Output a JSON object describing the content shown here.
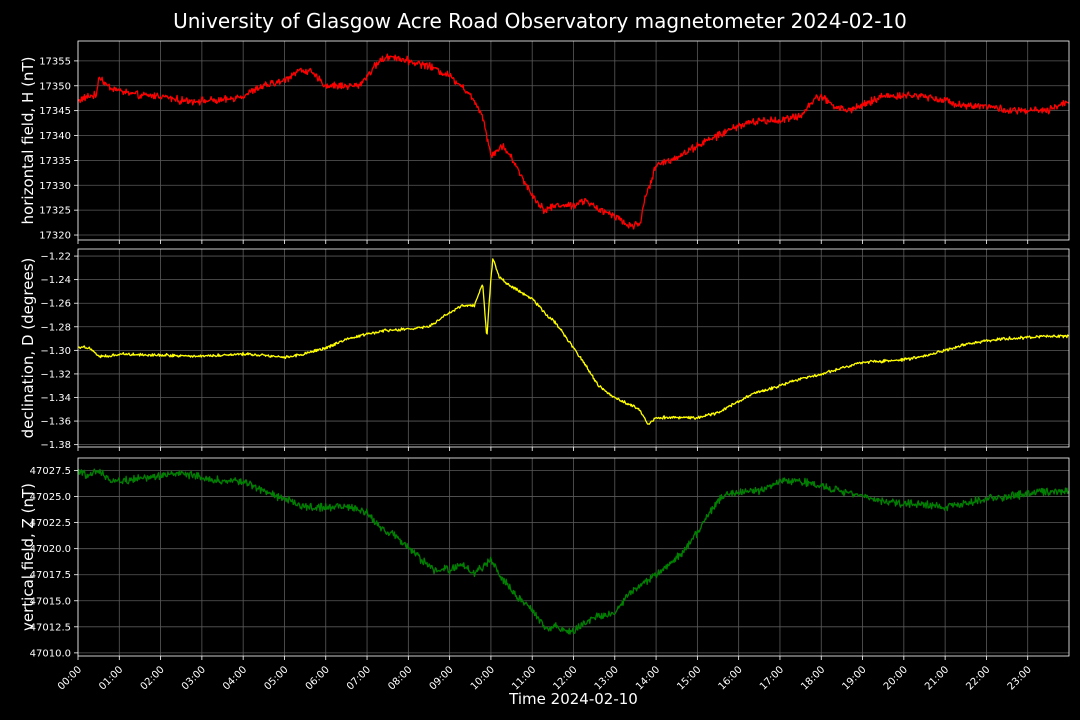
{
  "chart_data": {
    "type": "line",
    "title": "University of Glasgow Acre Road Observatory magnetometer 2024-02-10",
    "xlabel": "Time 2024-02-10",
    "x_tick_labels": [
      "00:00",
      "01:00",
      "02:00",
      "03:00",
      "04:00",
      "05:00",
      "06:00",
      "07:00",
      "08:00",
      "09:00",
      "10:00",
      "11:00",
      "12:00",
      "13:00",
      "14:00",
      "15:00",
      "16:00",
      "17:00",
      "18:00",
      "19:00",
      "20:00",
      "21:00",
      "22:00",
      "23:00"
    ],
    "xlim_hours": [
      0,
      24
    ],
    "grid": true,
    "background": "#000000",
    "panels": [
      {
        "id": "h",
        "ylabel": "horizontal field, H (nT)",
        "color": "#ff0000",
        "ylim": [
          17319,
          17359
        ],
        "yticks": [
          17320,
          17325,
          17330,
          17335,
          17340,
          17345,
          17350,
          17355
        ],
        "ytick_labels": [
          "17320",
          "17325",
          "17330",
          "17335",
          "17340",
          "17345",
          "17350",
          "17355"
        ],
        "noise": 0.9,
        "series": {
          "name": "H",
          "x": [
            0,
            0.3,
            0.45,
            0.5,
            0.7,
            1.0,
            1.5,
            2.0,
            2.5,
            3.0,
            3.5,
            4.0,
            4.5,
            5.0,
            5.3,
            5.6,
            6.0,
            6.5,
            6.8,
            7.0,
            7.3,
            7.6,
            8.0,
            8.5,
            9.0,
            9.3,
            9.6,
            9.8,
            10.0,
            10.3,
            10.6,
            11.0,
            11.3,
            11.6,
            12.0,
            12.3,
            12.6,
            13.0,
            13.3,
            13.6,
            13.75,
            13.85,
            14.0,
            14.3,
            14.6,
            15.0,
            15.5,
            16.0,
            16.5,
            17.0,
            17.5,
            17.8,
            18.0,
            18.3,
            18.6,
            19.0,
            19.5,
            20.0,
            20.5,
            21.0,
            21.5,
            22.0,
            22.5,
            23.0,
            23.5,
            24.0
          ],
          "values": [
            17347,
            17348,
            17348,
            17352,
            17350,
            17349,
            17348,
            17348,
            17347,
            17347,
            17347,
            17348,
            17350,
            17351,
            17353,
            17353,
            17350,
            17350,
            17350,
            17352,
            17355,
            17356,
            17355,
            17354,
            17352,
            17350,
            17347,
            17344,
            17336,
            17338,
            17334,
            17328,
            17325,
            17326,
            17326,
            17327,
            17325,
            17324,
            17322,
            17322,
            17328,
            17330,
            17334,
            17335,
            17336,
            17338,
            17340,
            17342,
            17343,
            17343,
            17344,
            17347,
            17348,
            17346,
            17345,
            17346,
            17348,
            17348,
            17348,
            17347,
            17346,
            17346,
            17345,
            17345,
            17345,
            17347
          ]
        }
      },
      {
        "id": "d",
        "ylabel": "declination, D (degrees)",
        "color": "#ffff00",
        "ylim": [
          -1.382,
          -1.214
        ],
        "yticks": [
          -1.38,
          -1.36,
          -1.34,
          -1.32,
          -1.3,
          -1.28,
          -1.26,
          -1.24,
          -1.22
        ],
        "ytick_labels": [
          "−1.38",
          "−1.36",
          "−1.34",
          "−1.32",
          "−1.30",
          "−1.28",
          "−1.26",
          "−1.24",
          "−1.22"
        ],
        "noise": 0.0015,
        "series": {
          "name": "D",
          "x": [
            0,
            0.3,
            0.5,
            0.8,
            1.0,
            2.0,
            3.0,
            4.0,
            4.5,
            5.0,
            5.5,
            6.0,
            6.5,
            7.0,
            7.5,
            8.0,
            8.5,
            9.0,
            9.3,
            9.6,
            9.8,
            9.9,
            10.0,
            10.05,
            10.2,
            10.5,
            11.0,
            11.3,
            11.6,
            12.0,
            12.3,
            12.6,
            13.0,
            13.3,
            13.6,
            13.8,
            14.0,
            14.3,
            14.6,
            15.0,
            15.5,
            16.0,
            16.5,
            17.0,
            17.5,
            18.0,
            18.5,
            19.0,
            19.5,
            20.0,
            20.5,
            21.0,
            21.5,
            22.0,
            22.5,
            23.0,
            23.5,
            24.0
          ],
          "values": [
            -1.297,
            -1.298,
            -1.305,
            -1.305,
            -1.303,
            -1.304,
            -1.305,
            -1.303,
            -1.304,
            -1.306,
            -1.303,
            -1.298,
            -1.291,
            -1.286,
            -1.283,
            -1.282,
            -1.28,
            -1.268,
            -1.262,
            -1.262,
            -1.243,
            -1.29,
            -1.238,
            -1.222,
            -1.238,
            -1.246,
            -1.256,
            -1.268,
            -1.278,
            -1.298,
            -1.313,
            -1.33,
            -1.34,
            -1.345,
            -1.35,
            -1.363,
            -1.357,
            -1.357,
            -1.357,
            -1.357,
            -1.353,
            -1.343,
            -1.335,
            -1.33,
            -1.324,
            -1.32,
            -1.315,
            -1.31,
            -1.309,
            -1.308,
            -1.305,
            -1.3,
            -1.295,
            -1.292,
            -1.29,
            -1.289,
            -1.288,
            -1.288
          ]
        }
      },
      {
        "id": "z",
        "ylabel": "vertical field, Z (nT)",
        "color": "#008000",
        "ylim": [
          47009.7,
          47028.7
        ],
        "yticks": [
          47010.0,
          47012.5,
          47015.0,
          47017.5,
          47020.0,
          47022.5,
          47025.0,
          47027.5
        ],
        "ytick_labels": [
          "47010.0",
          "47012.5",
          "47015.0",
          "47017.5",
          "47020.0",
          "47022.5",
          "47025.0",
          "47027.5"
        ],
        "noise": 0.45,
        "series": {
          "name": "Z",
          "x": [
            0,
            0.3,
            0.5,
            0.8,
            1.0,
            1.5,
            2.0,
            2.5,
            3.0,
            3.5,
            4.0,
            4.5,
            5.0,
            5.5,
            6.0,
            6.5,
            7.0,
            7.3,
            7.6,
            8.0,
            8.3,
            8.6,
            9.0,
            9.3,
            9.6,
            10.0,
            10.3,
            10.6,
            11.0,
            11.3,
            11.6,
            12.0,
            12.3,
            12.6,
            13.0,
            13.3,
            13.6,
            14.0,
            14.3,
            14.6,
            15.0,
            15.3,
            15.6,
            16.0,
            16.5,
            17.0,
            17.5,
            18.0,
            18.5,
            19.0,
            19.5,
            20.0,
            20.5,
            21.0,
            21.5,
            22.0,
            22.5,
            23.0,
            23.5,
            24.0
          ],
          "values": [
            47027.3,
            47027.0,
            47027.5,
            47026.5,
            47026.5,
            47026.8,
            47027.0,
            47027.2,
            47026.8,
            47026.5,
            47026.5,
            47025.5,
            47024.8,
            47024.0,
            47024.0,
            47024.0,
            47023.5,
            47022.0,
            47021.5,
            47020.0,
            47019.0,
            47018.0,
            47018.0,
            47018.5,
            47017.5,
            47019.0,
            47017.0,
            47015.5,
            47014.0,
            47012.5,
            47012.5,
            47012.0,
            47013.0,
            47013.5,
            47013.8,
            47015.5,
            47016.5,
            47017.5,
            47018.5,
            47019.5,
            47021.5,
            47023.5,
            47025.0,
            47025.5,
            47025.5,
            47026.5,
            47026.5,
            47026.0,
            47025.5,
            47025.0,
            47024.5,
            47024.3,
            47024.3,
            47024.0,
            47024.3,
            47024.8,
            47025.0,
            47025.3,
            47025.5,
            47025.5
          ]
        }
      }
    ]
  }
}
